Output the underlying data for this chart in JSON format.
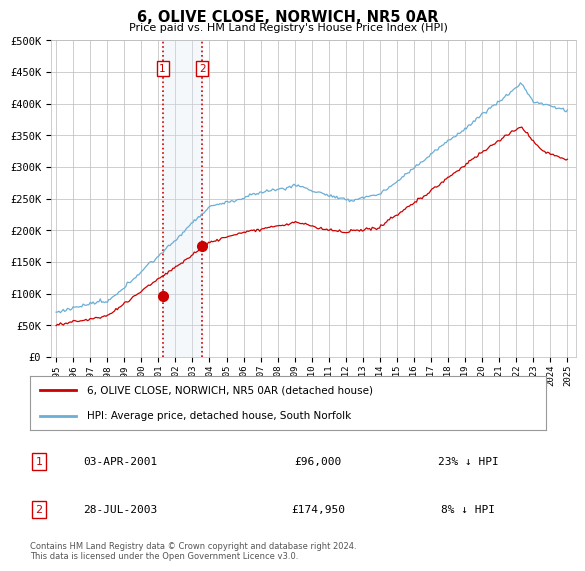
{
  "title": "6, OLIVE CLOSE, NORWICH, NR5 0AR",
  "subtitle": "Price paid vs. HM Land Registry's House Price Index (HPI)",
  "legend_entry1": "6, OLIVE CLOSE, NORWICH, NR5 0AR (detached house)",
  "legend_entry2": "HPI: Average price, detached house, South Norfolk",
  "transaction1_label": "1",
  "transaction1_date": "03-APR-2001",
  "transaction1_price": "£96,000",
  "transaction1_hpi": "23% ↓ HPI",
  "transaction2_label": "2",
  "transaction2_date": "28-JUL-2003",
  "transaction2_price": "£174,950",
  "transaction2_hpi": "8% ↓ HPI",
  "footer": "Contains HM Land Registry data © Crown copyright and database right 2024.\nThis data is licensed under the Open Government Licence v3.0.",
  "y_ticks": [
    0,
    50000,
    100000,
    150000,
    200000,
    250000,
    300000,
    350000,
    400000,
    450000,
    500000
  ],
  "y_tick_labels": [
    "£0",
    "£50K",
    "£100K",
    "£150K",
    "£200K",
    "£250K",
    "£300K",
    "£350K",
    "£400K",
    "£450K",
    "£500K"
  ],
  "hpi_color": "#6baed6",
  "price_color": "#cc0000",
  "transaction_marker_color": "#cc0000",
  "highlight_fill": "#dce9f5",
  "highlight_edge": "#cc0000",
  "grid_color": "#bbbbbb",
  "background_color": "#ffffff",
  "x_start_year": 1995,
  "x_end_year": 2025,
  "trans1_year": 2001.25,
  "trans2_year": 2003.57,
  "trans1_price_val": 96000,
  "trans2_price_val": 174950
}
